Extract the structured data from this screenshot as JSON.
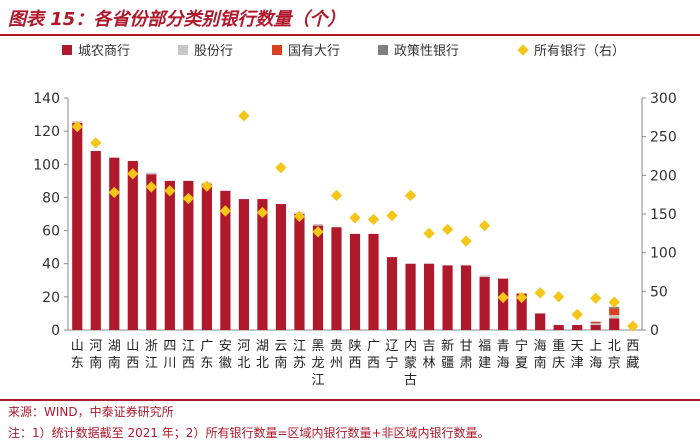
{
  "header": {
    "title": "图表 15：各省份部分类别银行数量（个）"
  },
  "footer": {
    "source": "来源：WIND，中泰证券研究所",
    "note": "注：1）统计数据截至 2021 年；2）所有银行数量=区域内银行数量+非区域内银行数量。"
  },
  "colors": {
    "city_rural": "#b0182c",
    "joint_stock": "#c8c8c8",
    "state_owned": "#d8411f",
    "policy": "#7f7f7f",
    "all_banks": "#f5c518"
  },
  "chart_data": {
    "type": "bar",
    "categories": [
      "山东",
      "河南",
      "湖南",
      "山西",
      "浙江",
      "四川",
      "江西",
      "广东",
      "安徽",
      "河北",
      "湖北",
      "云南",
      "江苏",
      "黑龙江",
      "贵州",
      "陕西",
      "广西",
      "辽宁",
      "内蒙古",
      "吉林",
      "新疆",
      "甘肃",
      "福建",
      "青海",
      "宁夏",
      "海南",
      "重庆",
      "天津",
      "上海",
      "北京",
      "西藏"
    ],
    "series": [
      {
        "name": "城农商行",
        "type": "bar",
        "axis": "left",
        "values": [
          125,
          108,
          104,
          102,
          94,
          90,
          90,
          88,
          84,
          79,
          79,
          76,
          70,
          63,
          62,
          58,
          58,
          44,
          40,
          40,
          39,
          39,
          32,
          31,
          22,
          10,
          3,
          3,
          3,
          7,
          0
        ]
      },
      {
        "name": "股份行",
        "type": "bar",
        "axis": "left",
        "values": [
          1,
          0,
          0,
          0,
          1,
          0,
          0,
          1,
          0,
          0,
          0,
          0,
          1,
          1,
          0,
          0,
          0,
          0,
          0,
          0,
          0,
          0,
          1,
          0,
          0,
          0,
          0,
          0,
          1,
          2,
          0
        ]
      },
      {
        "name": "国有大行",
        "type": "bar",
        "axis": "left",
        "values": [
          0,
          0,
          0,
          0,
          0,
          0,
          0,
          0,
          0,
          0,
          0,
          0,
          0,
          0,
          0,
          0,
          0,
          0,
          0,
          0,
          0,
          0,
          0,
          0,
          0,
          0,
          0,
          0,
          1,
          4,
          0
        ]
      },
      {
        "name": "政策性银行",
        "type": "bar",
        "axis": "left",
        "values": [
          0,
          0,
          0,
          0,
          0,
          0,
          0,
          0,
          0,
          0,
          0,
          0,
          0,
          0,
          0,
          0,
          0,
          0,
          0,
          0,
          0,
          0,
          0,
          0,
          0,
          0,
          0,
          0,
          0,
          1,
          0
        ]
      },
      {
        "name": "所有银行（右）",
        "type": "scatter",
        "axis": "right",
        "values": [
          263,
          242,
          178,
          202,
          185,
          180,
          170,
          186,
          154,
          277,
          152,
          210,
          147,
          127,
          174,
          145,
          143,
          148,
          174,
          125,
          130,
          115,
          135,
          42,
          42,
          48,
          43,
          20,
          41,
          36,
          5
        ]
      }
    ],
    "yleft": {
      "ylim": [
        0,
        140
      ],
      "ticks": [
        0,
        20,
        40,
        60,
        80,
        100,
        120,
        140
      ]
    },
    "yright": {
      "ylim": [
        0,
        300
      ],
      "ticks": [
        0,
        50,
        100,
        150,
        200,
        250,
        300
      ]
    },
    "legend": "top",
    "grid": false
  }
}
